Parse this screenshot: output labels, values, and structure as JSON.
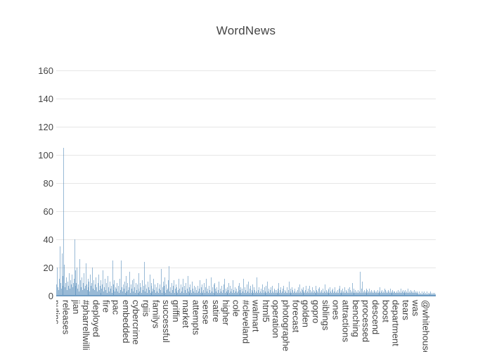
{
  "title": "WordNews",
  "colors": {
    "text": "#444444",
    "grid": "#e6e6e6",
    "bar": "rgba(70,130,180,0.55)",
    "axis_line": "#6f9cc2",
    "background": "#ffffff"
  },
  "chart_data": {
    "type": "bar",
    "title": "WordNews",
    "xlabel": "",
    "ylabel": "",
    "ylim": [
      0,
      167.5
    ],
    "y_ticks": [
      0,
      20,
      40,
      60,
      80,
      100,
      120,
      140,
      160
    ],
    "grid": true,
    "legend": "none",
    "n_bars": 570,
    "tick_every": 15,
    "x_tick_labels": [
      "putins",
      "releases",
      "jian",
      "#pharrellwilli",
      "deployed",
      "fire",
      "pac",
      "embedded",
      "cybercrime",
      "rgiis",
      "familys",
      "successful",
      "griffin",
      "market",
      "attempts",
      "sense",
      "satire",
      "higher",
      "cole",
      "#cleveland",
      "walmart",
      "html5",
      "operation",
      "photographe",
      "forecast",
      "golden",
      "gopro",
      "siblings",
      "ones",
      "attractions",
      "benching",
      "processed",
      "descend",
      "boost",
      "department",
      "tears",
      "was",
      "@whitehouse"
    ],
    "values": [
      8,
      20,
      6,
      4,
      12,
      35,
      9,
      5,
      30,
      7,
      14,
      105,
      22,
      6,
      9,
      13,
      4,
      10,
      7,
      16,
      5,
      11,
      8,
      15,
      6,
      9,
      12,
      40,
      7,
      18,
      9,
      20,
      5,
      8,
      3,
      26,
      11,
      6,
      13,
      4,
      9,
      16,
      5,
      7,
      23,
      8,
      4,
      12,
      6,
      10,
      3,
      15,
      7,
      9,
      20,
      5,
      11,
      4,
      8,
      13,
      6,
      3,
      9,
      15,
      4,
      7,
      2,
      11,
      5,
      8,
      18,
      3,
      6,
      12,
      4,
      9,
      2,
      14,
      6,
      3,
      10,
      5,
      7,
      2,
      25,
      8,
      4,
      11,
      3,
      6,
      5,
      9,
      3,
      7,
      2,
      12,
      4,
      25,
      6,
      3,
      8,
      5,
      10,
      2,
      14,
      7,
      3,
      9,
      4,
      6,
      17,
      2,
      8,
      5,
      11,
      3,
      12,
      6,
      2,
      9,
      4,
      8,
      2,
      16,
      5,
      3,
      9,
      6,
      2,
      11,
      4,
      7,
      24,
      3,
      8,
      5,
      2,
      10,
      6,
      4,
      15,
      2,
      7,
      9,
      3,
      5,
      12,
      4,
      8,
      2,
      6,
      3,
      9,
      2,
      5,
      8,
      4,
      19,
      2,
      6,
      10,
      3,
      7,
      13,
      2,
      8,
      4,
      5,
      11,
      21,
      3,
      6,
      2,
      9,
      4,
      7,
      11,
      2,
      5,
      8,
      3,
      6,
      2,
      4,
      12,
      5,
      2,
      8,
      3,
      6,
      12,
      2,
      7,
      4,
      9,
      2,
      5,
      14,
      3,
      6,
      2,
      8,
      4,
      2,
      10,
      5,
      3,
      7,
      2,
      6,
      4,
      2,
      7,
      3,
      5,
      11,
      2,
      6,
      3,
      8,
      2,
      4,
      9,
      2,
      6,
      12,
      3,
      5,
      2,
      7,
      4,
      2,
      13,
      3,
      6,
      2,
      8,
      9,
      2,
      5,
      3,
      6,
      2,
      4,
      10,
      2,
      5,
      3,
      7,
      2,
      4,
      8,
      12,
      2,
      5,
      3,
      6,
      2,
      4,
      9,
      2,
      7,
      3,
      5,
      2,
      11,
      4,
      2,
      6,
      3,
      5,
      2,
      3,
      7,
      9,
      2,
      4,
      6,
      2,
      5,
      3,
      12,
      2,
      6,
      4,
      2,
      8,
      3,
      10,
      2,
      5,
      7,
      2,
      4,
      3,
      8,
      2,
      6,
      4,
      2,
      3,
      13,
      2,
      4,
      6,
      2,
      3,
      5,
      2,
      8,
      4,
      2,
      6,
      3,
      2,
      7,
      2,
      10,
      3,
      5,
      2,
      4,
      6,
      2,
      7,
      3,
      2,
      5,
      4,
      2,
      4,
      2,
      5,
      3,
      9,
      2,
      4,
      6,
      2,
      3,
      5,
      7,
      2,
      4,
      3,
      2,
      6,
      2,
      4,
      10,
      2,
      3,
      5,
      2,
      6,
      4,
      2,
      3,
      5,
      2,
      3,
      2,
      4,
      6,
      2,
      8,
      3,
      2,
      5,
      4,
      2,
      6,
      3,
      2,
      4,
      7,
      2,
      3,
      5,
      2,
      7,
      4,
      2,
      3,
      6,
      2,
      4,
      3,
      2,
      7,
      2,
      4,
      3,
      2,
      5,
      6,
      2,
      3,
      4,
      2,
      5,
      2,
      3,
      8,
      2,
      4,
      3,
      2,
      5,
      4,
      2,
      6,
      3,
      2,
      4,
      5,
      2,
      3,
      6,
      2,
      3,
      2,
      4,
      2,
      5,
      7,
      2,
      3,
      4,
      2,
      5,
      3,
      2,
      6,
      2,
      4,
      3,
      2,
      5,
      2,
      6,
      4,
      2,
      3,
      9,
      2,
      5,
      3,
      2,
      4,
      2,
      3,
      2,
      4,
      2,
      3,
      17,
      2,
      5,
      10,
      2,
      3,
      4,
      2,
      3,
      5,
      2,
      4,
      2,
      3,
      5,
      2,
      3,
      4,
      2,
      3,
      2,
      4,
      3,
      2,
      3,
      2,
      4,
      2,
      3,
      2,
      6,
      2,
      3,
      4,
      2,
      3,
      2,
      5,
      4,
      2,
      3,
      2,
      4,
      3,
      2,
      5,
      2,
      3,
      2,
      4,
      2,
      3,
      3,
      2,
      2,
      3,
      2,
      4,
      2,
      3,
      2,
      5,
      2,
      3,
      4,
      2,
      3,
      2,
      4,
      2,
      3,
      2,
      5,
      2,
      3,
      2,
      4,
      3,
      2,
      3,
      2,
      4,
      2,
      3,
      2,
      1,
      3,
      2,
      1,
      3,
      1,
      2,
      1,
      3,
      1,
      2,
      3,
      1,
      2,
      1,
      3,
      1,
      2,
      1,
      2,
      1,
      3,
      1,
      2,
      1,
      2,
      1,
      2,
      1
    ]
  }
}
